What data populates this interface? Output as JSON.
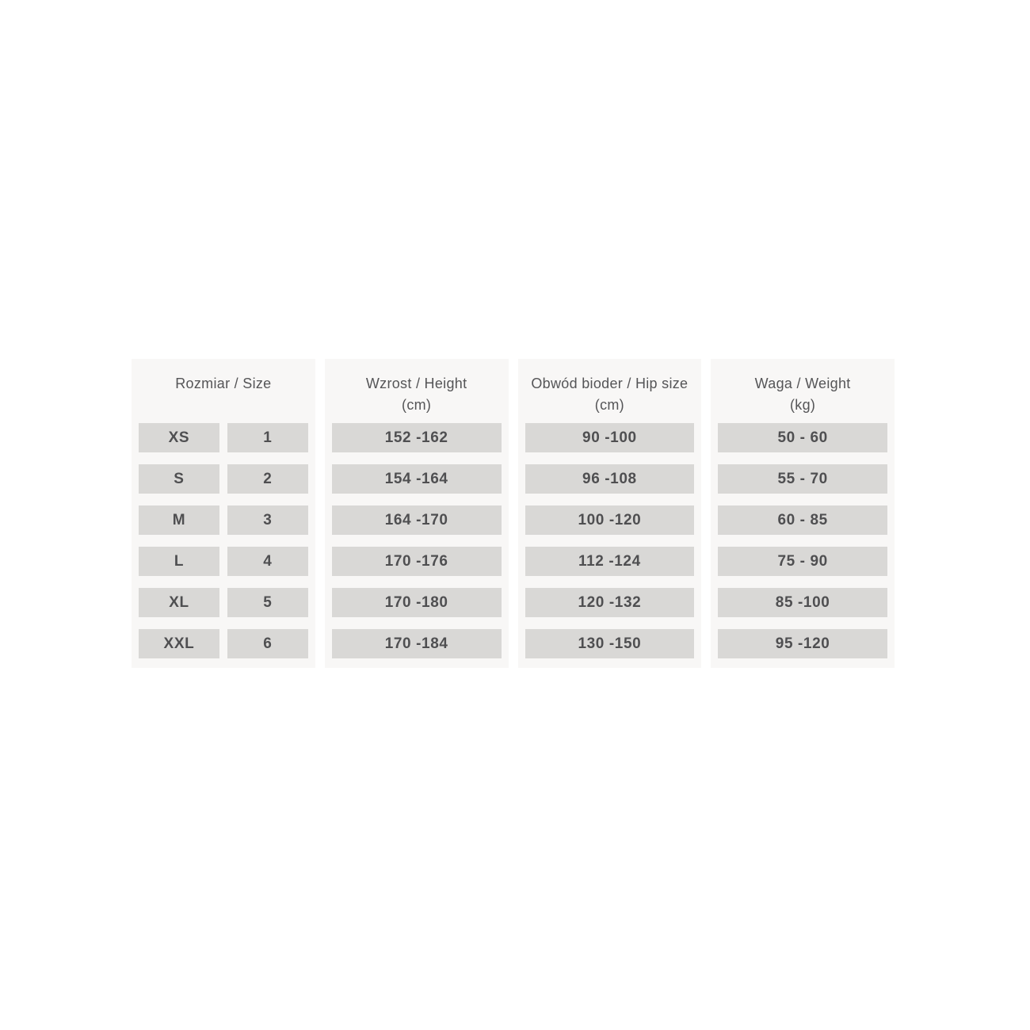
{
  "table": {
    "colors": {
      "page_bg": "#ffffff",
      "panel_bg": "#f8f7f6",
      "cell_bg": "#d9d8d6",
      "header_text": "#555557",
      "value_text": "#4f4f51"
    },
    "columns": [
      {
        "title": "Rozmiar / Size",
        "unit": ""
      },
      {
        "title": "Wzrost / Height",
        "unit": "(cm)"
      },
      {
        "title": "Obwód bioder / Hip size",
        "unit": "(cm)"
      },
      {
        "title": "Waga / Weight",
        "unit": "(kg)"
      }
    ],
    "rows": [
      {
        "size": "XS",
        "num": "1",
        "height": "152 -162",
        "hip": "90 -100",
        "weight": "50 - 60"
      },
      {
        "size": "S",
        "num": "2",
        "height": "154 -164",
        "hip": "96 -108",
        "weight": "55 - 70"
      },
      {
        "size": "M",
        "num": "3",
        "height": "164 -170",
        "hip": "100 -120",
        "weight": "60 - 85"
      },
      {
        "size": "L",
        "num": "4",
        "height": "170 -176",
        "hip": "112 -124",
        "weight": "75 - 90"
      },
      {
        "size": "XL",
        "num": "5",
        "height": "170 -180",
        "hip": "120 -132",
        "weight": "85 -100"
      },
      {
        "size": "XXL",
        "num": "6",
        "height": "170 -184",
        "hip": "130 -150",
        "weight": "95 -120"
      }
    ]
  },
  "chart_data": {
    "type": "table",
    "columns": [
      "Rozmiar / Size (letter)",
      "Rozmiar / Size (number)",
      "Wzrost / Height (cm)",
      "Obwód bioder / Hip size (cm)",
      "Waga / Weight (kg)"
    ],
    "rows": [
      [
        "XS",
        1,
        "152-162",
        "90-100",
        "50-60"
      ],
      [
        "S",
        2,
        "154-164",
        "96-108",
        "55-70"
      ],
      [
        "M",
        3,
        "164-170",
        "100-120",
        "60-85"
      ],
      [
        "L",
        4,
        "170-176",
        "112-124",
        "75-90"
      ],
      [
        "XL",
        5,
        "170-180",
        "120-132",
        "85-100"
      ],
      [
        "XXL",
        6,
        "170-184",
        "130-150",
        "95-120"
      ]
    ]
  }
}
